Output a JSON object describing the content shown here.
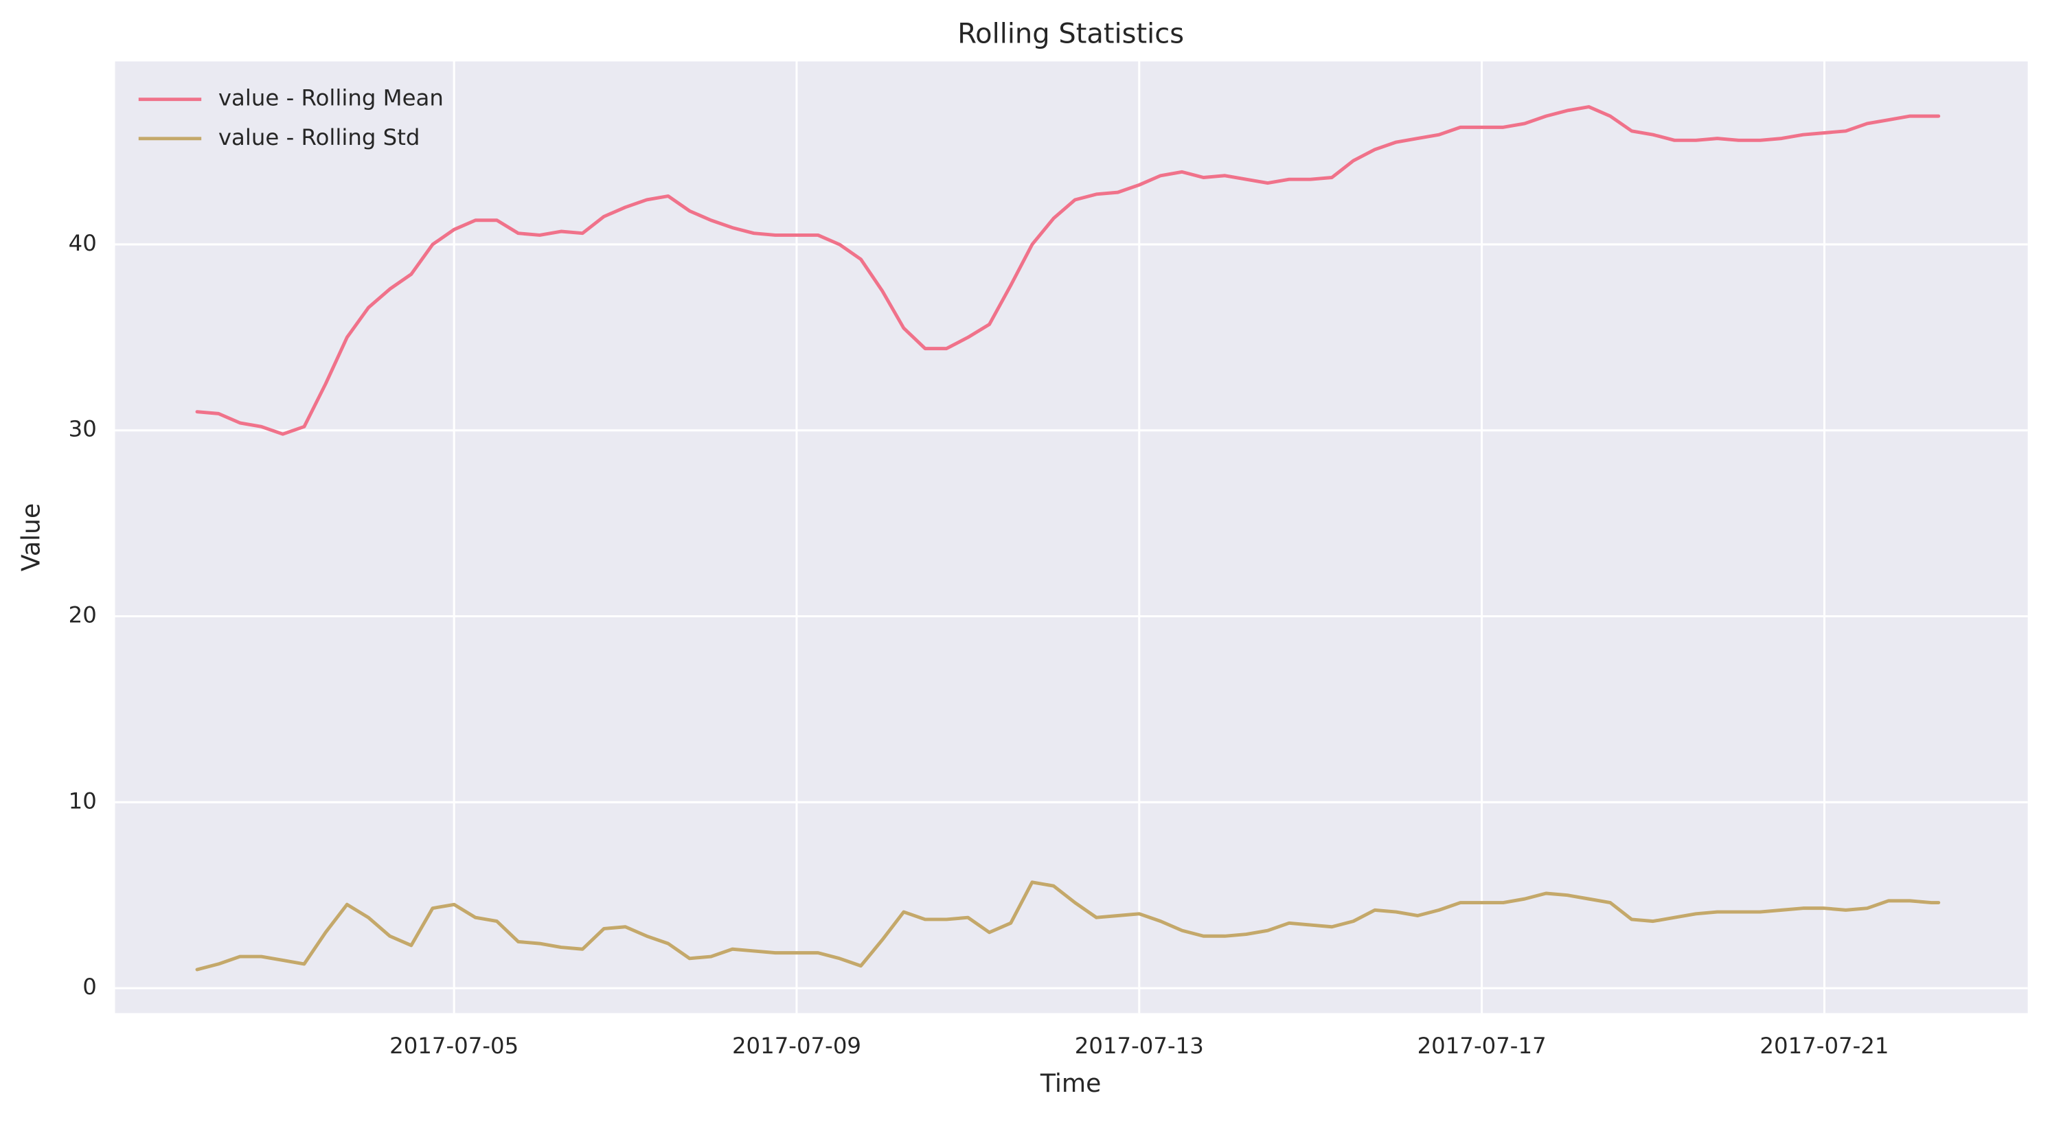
{
  "chart_data": {
    "type": "line",
    "title": "Rolling Statistics",
    "x_label": "Time",
    "y_label": "Value",
    "x": [
      "2017-07-02T00:00",
      "2017-07-02T06:00",
      "2017-07-02T12:00",
      "2017-07-02T18:00",
      "2017-07-03T00:00",
      "2017-07-03T06:00",
      "2017-07-03T12:00",
      "2017-07-03T18:00",
      "2017-07-04T00:00",
      "2017-07-04T06:00",
      "2017-07-04T12:00",
      "2017-07-04T18:00",
      "2017-07-05T00:00",
      "2017-07-05T06:00",
      "2017-07-05T12:00",
      "2017-07-05T18:00",
      "2017-07-06T00:00",
      "2017-07-06T06:00",
      "2017-07-06T12:00",
      "2017-07-06T18:00",
      "2017-07-07T00:00",
      "2017-07-07T06:00",
      "2017-07-07T12:00",
      "2017-07-07T18:00",
      "2017-07-08T00:00",
      "2017-07-08T06:00",
      "2017-07-08T12:00",
      "2017-07-08T18:00",
      "2017-07-09T00:00",
      "2017-07-09T06:00",
      "2017-07-09T12:00",
      "2017-07-09T18:00",
      "2017-07-10T00:00",
      "2017-07-10T06:00",
      "2017-07-10T12:00",
      "2017-07-10T18:00",
      "2017-07-11T00:00",
      "2017-07-11T06:00",
      "2017-07-11T12:00",
      "2017-07-11T18:00",
      "2017-07-12T00:00",
      "2017-07-12T06:00",
      "2017-07-12T12:00",
      "2017-07-12T18:00",
      "2017-07-13T00:00",
      "2017-07-13T06:00",
      "2017-07-13T12:00",
      "2017-07-13T18:00",
      "2017-07-14T00:00",
      "2017-07-14T06:00",
      "2017-07-14T12:00",
      "2017-07-14T18:00",
      "2017-07-15T00:00",
      "2017-07-15T06:00",
      "2017-07-15T12:00",
      "2017-07-15T18:00",
      "2017-07-16T00:00",
      "2017-07-16T06:00",
      "2017-07-16T12:00",
      "2017-07-16T18:00",
      "2017-07-17T00:00",
      "2017-07-17T06:00",
      "2017-07-17T12:00",
      "2017-07-17T18:00",
      "2017-07-18T00:00",
      "2017-07-18T06:00",
      "2017-07-18T12:00",
      "2017-07-18T18:00",
      "2017-07-19T00:00",
      "2017-07-19T06:00",
      "2017-07-19T12:00",
      "2017-07-19T18:00",
      "2017-07-20T00:00",
      "2017-07-20T06:00",
      "2017-07-20T12:00",
      "2017-07-20T18:00",
      "2017-07-21T00:00",
      "2017-07-21T06:00",
      "2017-07-21T12:00",
      "2017-07-21T18:00",
      "2017-07-22T00:00",
      "2017-07-22T06:00",
      "2017-07-22T08:00"
    ],
    "series": [
      {
        "name": "value - Rolling Mean",
        "color": "#f0728a",
        "values": [
          31.0,
          30.9,
          30.4,
          30.2,
          29.8,
          30.2,
          32.5,
          35.0,
          36.6,
          37.6,
          38.4,
          40.0,
          40.8,
          41.3,
          41.3,
          40.6,
          40.5,
          40.7,
          40.6,
          41.5,
          42.0,
          42.4,
          42.6,
          41.8,
          41.3,
          40.9,
          40.6,
          40.5,
          40.5,
          40.5,
          40.0,
          39.2,
          37.5,
          35.5,
          34.4,
          34.4,
          35.0,
          35.7,
          37.8,
          40.0,
          41.4,
          42.4,
          42.7,
          42.8,
          43.2,
          43.7,
          43.9,
          43.6,
          43.7,
          43.5,
          43.3,
          43.5,
          43.5,
          43.6,
          44.5,
          45.1,
          45.5,
          45.7,
          45.9,
          46.3,
          46.3,
          46.3,
          46.5,
          46.9,
          47.2,
          47.4,
          46.9,
          46.1,
          45.9,
          45.6,
          45.6,
          45.7,
          45.6,
          45.6,
          45.7,
          45.9,
          46.0,
          46.1,
          46.5,
          46.7,
          46.9,
          46.9,
          46.9
        ]
      },
      {
        "name": "value - Rolling Std",
        "color": "#c4a86a",
        "values": [
          1.0,
          1.3,
          1.7,
          1.7,
          1.5,
          1.3,
          3.0,
          4.5,
          3.8,
          2.8,
          2.3,
          4.3,
          4.5,
          3.8,
          3.6,
          2.5,
          2.4,
          2.2,
          2.1,
          3.2,
          3.3,
          2.8,
          2.4,
          1.6,
          1.7,
          2.1,
          2.0,
          1.9,
          1.9,
          1.9,
          1.6,
          1.2,
          2.6,
          4.1,
          3.7,
          3.7,
          3.8,
          3.0,
          3.5,
          5.7,
          5.5,
          4.6,
          3.8,
          3.9,
          4.0,
          3.6,
          3.1,
          2.8,
          2.8,
          2.9,
          3.1,
          3.5,
          3.4,
          3.3,
          3.6,
          4.2,
          4.1,
          3.9,
          4.2,
          4.6,
          4.6,
          4.6,
          4.8,
          5.1,
          5.0,
          4.8,
          4.6,
          3.7,
          3.6,
          3.8,
          4.0,
          4.1,
          4.1,
          4.1,
          4.2,
          4.3,
          4.3,
          4.2,
          4.3,
          4.7,
          4.7,
          4.6,
          4.6
        ]
      }
    ],
    "xlim": [
      "2017-07-01T01:00",
      "2017-07-23T09:00"
    ],
    "xticks": [
      "2017-07-05",
      "2017-07-09",
      "2017-07-13",
      "2017-07-17",
      "2017-07-21"
    ],
    "ylim": [
      -1.34,
      49.84
    ],
    "yticks": [
      0,
      10,
      20,
      30,
      40
    ],
    "grid": true,
    "legend": "upper left"
  }
}
